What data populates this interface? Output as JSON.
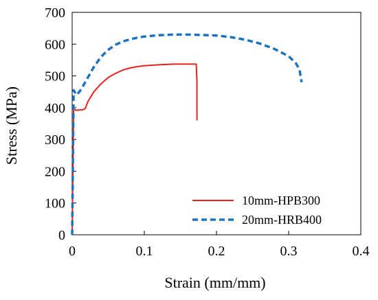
{
  "chart_data": {
    "type": "line",
    "xlabel": "Strain (mm/mm)",
    "ylabel": "Stress (MPa)",
    "xlim": [
      0,
      0.4
    ],
    "ylim": [
      0,
      700
    ],
    "xticks": [
      0,
      0.1,
      0.2,
      0.3,
      0.4
    ],
    "yticks": [
      0,
      100,
      200,
      300,
      400,
      500,
      600,
      700
    ],
    "xtick_labels": [
      "0",
      "0.1",
      "0.2",
      "0.3",
      "0.4"
    ],
    "ytick_labels": [
      "0",
      "100",
      "200",
      "300",
      "400",
      "500",
      "600",
      "700"
    ],
    "grid": false,
    "legend_position": "bottom-right",
    "series": [
      {
        "name": "10mm-HPB300",
        "color": "#e8211d",
        "dash": "solid",
        "x": [
          0,
          0.002,
          0.006,
          0.01,
          0.014,
          0.018,
          0.022,
          0.03,
          0.04,
          0.05,
          0.06,
          0.07,
          0.08,
          0.09,
          0.1,
          0.12,
          0.14,
          0.16,
          0.172,
          0.173,
          0.173
        ],
        "y": [
          0,
          395,
          392,
          393,
          393,
          397,
          420,
          450,
          475,
          495,
          508,
          518,
          525,
          529,
          532,
          535,
          537,
          537,
          537,
          480,
          360
        ]
      },
      {
        "name": "20mm-HRB400",
        "color": "#1b73c0",
        "dash": "dashed",
        "x": [
          0,
          0.002,
          0.006,
          0.01,
          0.015,
          0.02,
          0.025,
          0.03,
          0.04,
          0.05,
          0.06,
          0.07,
          0.08,
          0.09,
          0.1,
          0.12,
          0.14,
          0.16,
          0.18,
          0.2,
          0.22,
          0.24,
          0.26,
          0.28,
          0.3,
          0.31,
          0.315,
          0.318
        ],
        "y": [
          0,
          455,
          440,
          450,
          468,
          488,
          508,
          528,
          560,
          582,
          598,
          608,
          615,
          620,
          624,
          628,
          630,
          630,
          629,
          627,
          622,
          614,
          602,
          585,
          562,
          540,
          520,
          480
        ]
      }
    ]
  }
}
